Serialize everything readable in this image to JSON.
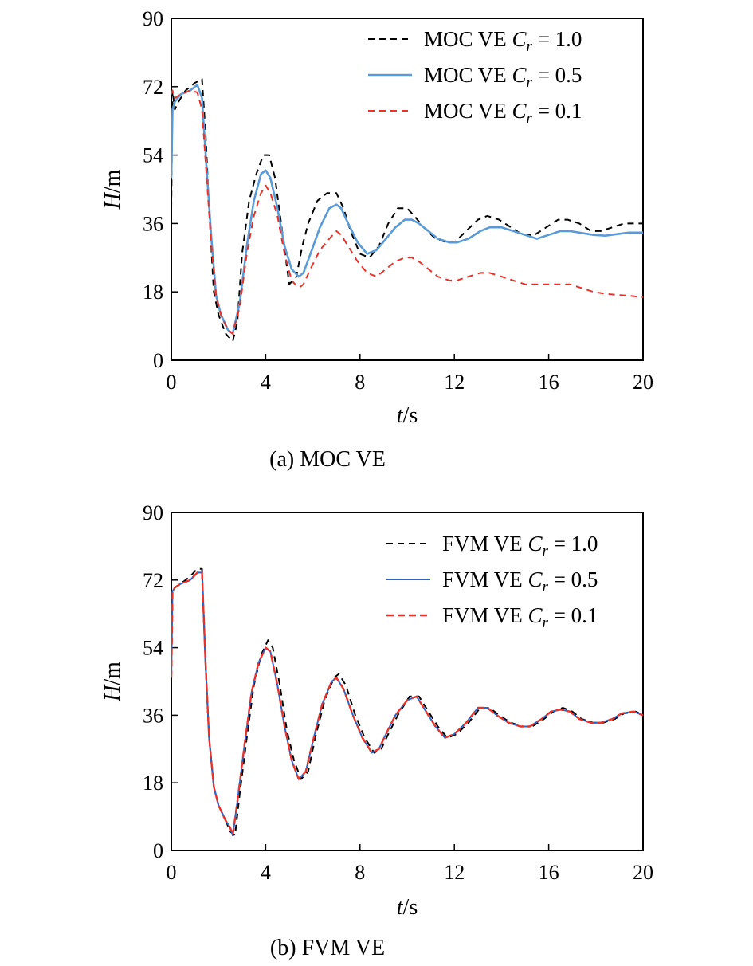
{
  "chart_data": [
    {
      "type": "line",
      "caption": "(a) MOC VE",
      "xlabel": {
        "var": "t",
        "unit": "/s"
      },
      "ylabel": {
        "var": "H",
        "unit": "/m"
      },
      "xlim": [
        0,
        20
      ],
      "ylim": [
        0,
        90
      ],
      "xticks": [
        0,
        4,
        8,
        12,
        16,
        20
      ],
      "yticks": [
        0,
        18,
        36,
        54,
        72,
        90
      ],
      "legend_position": "top-right",
      "series": [
        {
          "name": "MOC VE C_r = 1.0",
          "legend": {
            "prefix": "MOC VE ",
            "sym": "C",
            "sub": "r",
            "suffix": " = 1.0"
          },
          "color": "#000000",
          "dash": "8,6",
          "width": 2,
          "x": [
            0,
            0.05,
            0.15,
            0.3,
            0.6,
            1.0,
            1.3,
            1.45,
            1.6,
            1.8,
            2.0,
            2.3,
            2.6,
            2.8,
            3.0,
            3.3,
            3.6,
            3.9,
            4.15,
            4.4,
            4.7,
            5.0,
            5.3,
            5.55,
            5.8,
            6.2,
            6.6,
            7.0,
            7.3,
            7.6,
            8.0,
            8.4,
            8.8,
            9.2,
            9.6,
            10.0,
            10.3,
            10.7,
            11.2,
            11.7,
            12.0,
            12.5,
            13.0,
            13.4,
            13.9,
            14.4,
            14.9,
            15.4,
            15.9,
            16.4,
            16.8,
            17.3,
            17.8,
            18.2,
            18.7,
            19.2,
            19.6,
            20.0
          ],
          "y": [
            40,
            71,
            66,
            68,
            71,
            73,
            74,
            60,
            40,
            18,
            12,
            7,
            5,
            10,
            28,
            42,
            49,
            54,
            54,
            48,
            34,
            20,
            22,
            30,
            36,
            42,
            44,
            44,
            40,
            34,
            28,
            27,
            30,
            36,
            40,
            40,
            38,
            35,
            32,
            31,
            31,
            34,
            37,
            38,
            37,
            35,
            33,
            33,
            35,
            37,
            37,
            36,
            34,
            34,
            35,
            36,
            36,
            36
          ]
        },
        {
          "name": "MOC VE C_r = 0.5",
          "legend": {
            "prefix": "MOC VE ",
            "sym": "C",
            "sub": "r",
            "suffix": " = 0.5"
          },
          "color": "#5b9bd5",
          "dash": "",
          "width": 2.6,
          "x": [
            0,
            0.05,
            0.15,
            0.4,
            0.8,
            1.1,
            1.3,
            1.5,
            1.7,
            1.9,
            2.1,
            2.4,
            2.6,
            2.9,
            3.2,
            3.5,
            3.8,
            4.0,
            4.2,
            4.5,
            4.8,
            5.1,
            5.4,
            5.6,
            5.9,
            6.3,
            6.7,
            7.0,
            7.2,
            7.5,
            7.9,
            8.3,
            8.7,
            9.1,
            9.5,
            9.9,
            10.2,
            10.5,
            10.9,
            11.3,
            11.8,
            12.1,
            12.6,
            13.1,
            13.5,
            14.0,
            14.5,
            15.0,
            15.5,
            16.0,
            16.5,
            16.9,
            17.4,
            17.9,
            18.4,
            18.9,
            19.4,
            20.0
          ],
          "y": [
            48,
            66,
            68,
            70,
            71,
            72.5,
            69,
            50,
            32,
            17,
            12,
            8,
            7,
            15,
            30,
            42,
            49,
            50,
            48,
            40,
            30,
            24,
            22,
            23,
            28,
            35,
            40,
            41,
            40,
            36,
            31,
            28,
            29,
            32,
            35,
            37,
            37,
            36,
            34,
            32,
            31,
            31,
            32,
            34,
            35,
            35,
            34,
            33,
            32,
            33,
            34,
            34,
            33.5,
            33,
            32.8,
            33.2,
            33.6,
            33.6
          ]
        },
        {
          "name": "MOC VE C_r = 0.1",
          "legend": {
            "prefix": "MOC VE ",
            "sym": "C",
            "sub": "r",
            "suffix": " = 0.1"
          },
          "color": "#e8322c",
          "dash": "8,6",
          "width": 2,
          "x": [
            0,
            0.05,
            0.15,
            0.4,
            0.8,
            1.1,
            1.3,
            1.5,
            1.7,
            1.9,
            2.1,
            2.4,
            2.6,
            2.9,
            3.2,
            3.5,
            3.8,
            4.0,
            4.2,
            4.5,
            4.8,
            5.1,
            5.4,
            5.6,
            5.9,
            6.3,
            6.7,
            7.0,
            7.2,
            7.5,
            7.9,
            8.3,
            8.7,
            9.1,
            9.5,
            9.9,
            10.2,
            10.5,
            10.9,
            11.3,
            11.8,
            12.1,
            12.6,
            13.1,
            13.5,
            14.0,
            14.5,
            15.0,
            15.5,
            16.0,
            16.5,
            16.9,
            17.4,
            17.9,
            18.4,
            18.9,
            19.4,
            20.0
          ],
          "y": [
            70,
            71,
            69,
            70,
            71,
            70.5,
            66,
            48,
            30,
            17,
            12,
            8,
            7,
            14,
            28,
            38,
            44,
            46,
            44,
            38,
            28,
            21,
            19,
            20,
            24,
            29,
            32,
            34,
            33,
            30,
            26,
            23,
            22,
            24,
            26,
            27,
            27,
            26,
            24,
            22,
            21,
            21,
            22,
            23,
            23,
            22,
            21,
            20,
            20,
            20,
            20,
            20,
            19,
            18,
            17.5,
            17.2,
            17,
            16.6
          ]
        }
      ]
    },
    {
      "type": "line",
      "caption": "(b) FVM VE",
      "xlabel": {
        "var": "t",
        "unit": "/s"
      },
      "ylabel": {
        "var": "H",
        "unit": "/m"
      },
      "xlim": [
        0,
        20
      ],
      "ylim": [
        0,
        90
      ],
      "xticks": [
        0,
        4,
        8,
        12,
        16,
        20
      ],
      "yticks": [
        0,
        18,
        36,
        54,
        72,
        90
      ],
      "legend_position": "top-right",
      "series": [
        {
          "name": "FVM VE C_r = 1.0",
          "legend": {
            "prefix": "FVM VE ",
            "sym": "C",
            "sub": "r",
            "suffix": " = 1.0"
          },
          "color": "#000000",
          "dash": "8,6",
          "width": 2,
          "x": [
            0,
            0.05,
            0.15,
            0.4,
            0.8,
            1.1,
            1.3,
            1.45,
            1.6,
            1.8,
            2.0,
            2.3,
            2.5,
            2.7,
            2.9,
            3.2,
            3.5,
            3.8,
            4.1,
            4.3,
            4.6,
            4.9,
            5.2,
            5.5,
            5.8,
            6.1,
            6.5,
            6.9,
            7.1,
            7.4,
            7.8,
            8.2,
            8.6,
            8.9,
            9.2,
            9.6,
            10.1,
            10.5,
            10.9,
            11.3,
            11.7,
            12.1,
            12.6,
            13.1,
            13.5,
            13.9,
            14.4,
            14.9,
            15.3,
            15.8,
            16.2,
            16.6,
            17.0,
            17.4,
            17.9,
            18.3,
            18.8,
            19.2,
            19.7,
            20.0
          ],
          "y": [
            46,
            69,
            70,
            71,
            73,
            75,
            75,
            50,
            30,
            17,
            12,
            8,
            5,
            4,
            15,
            30,
            44,
            52,
            56,
            54,
            44,
            32,
            24,
            19,
            21,
            30,
            40,
            46,
            47,
            44,
            36,
            30,
            26,
            27,
            31,
            36,
            41,
            41,
            37,
            33,
            30,
            31,
            34,
            38,
            38,
            36,
            34,
            33,
            33,
            35,
            37,
            38,
            37,
            35,
            34,
            34,
            35,
            36.5,
            37,
            36
          ]
        },
        {
          "name": "FVM VE C_r = 0.5",
          "legend": {
            "prefix": "FVM VE ",
            "sym": "C",
            "sub": "r",
            "suffix": " = 0.5"
          },
          "color": "#2e63c8",
          "dash": "",
          "width": 2,
          "x": [
            0,
            0.05,
            0.15,
            0.4,
            0.8,
            1.1,
            1.3,
            1.45,
            1.6,
            1.8,
            2.0,
            2.3,
            2.5,
            2.6,
            2.8,
            3.1,
            3.4,
            3.7,
            4.0,
            4.2,
            4.5,
            4.8,
            5.1,
            5.4,
            5.7,
            6.0,
            6.4,
            6.8,
            7.0,
            7.3,
            7.7,
            8.1,
            8.5,
            8.8,
            9.1,
            9.5,
            10.0,
            10.4,
            10.8,
            11.2,
            11.6,
            12.0,
            12.5,
            13.0,
            13.4,
            13.8,
            14.3,
            14.8,
            15.2,
            15.7,
            16.1,
            16.5,
            16.9,
            17.3,
            17.8,
            18.2,
            18.7,
            19.1,
            19.6,
            20.0
          ],
          "y": [
            46,
            69,
            70,
            71,
            72,
            74,
            74,
            50,
            30,
            17,
            12,
            8,
            6,
            4,
            13,
            28,
            42,
            50,
            54,
            53,
            44,
            33,
            24,
            19,
            21,
            29,
            39,
            45,
            46,
            43,
            36,
            30,
            26,
            27,
            31,
            36,
            40,
            41,
            37,
            33,
            30,
            31,
            34,
            38,
            38,
            36,
            34,
            33,
            33,
            35,
            37,
            37.5,
            37,
            35,
            34,
            34,
            35,
            36.5,
            37,
            36
          ]
        },
        {
          "name": "FVM VE C_r = 0.1",
          "legend": {
            "prefix": "FVM VE ",
            "sym": "C",
            "sub": "r",
            "suffix": " = 0.1"
          },
          "color": "#e8322c",
          "dash": "9,5",
          "width": 2.4,
          "x": [
            0,
            0.05,
            0.15,
            0.4,
            0.8,
            1.1,
            1.3,
            1.45,
            1.6,
            1.8,
            2.0,
            2.3,
            2.5,
            2.6,
            2.8,
            3.1,
            3.4,
            3.7,
            4.0,
            4.2,
            4.5,
            4.8,
            5.1,
            5.4,
            5.7,
            6.0,
            6.4,
            6.8,
            7.0,
            7.3,
            7.7,
            8.1,
            8.5,
            8.8,
            9.1,
            9.5,
            10.0,
            10.4,
            10.8,
            11.2,
            11.6,
            12.0,
            12.5,
            13.0,
            13.4,
            13.8,
            14.3,
            14.8,
            15.2,
            15.7,
            16.1,
            16.5,
            16.9,
            17.3,
            17.8,
            18.2,
            18.7,
            19.1,
            19.6,
            20.0
          ],
          "y": [
            46,
            69,
            70,
            71,
            72,
            74,
            74,
            50,
            30,
            17,
            12,
            8,
            6,
            4,
            13,
            28,
            42,
            50,
            54,
            53,
            44,
            33,
            24,
            19,
            21,
            29,
            39,
            45,
            46,
            43,
            36,
            30,
            26,
            27,
            31,
            36,
            40,
            41,
            37,
            33,
            30,
            31,
            34,
            38,
            38,
            36,
            34,
            33,
            33,
            35,
            37,
            37.5,
            37,
            35,
            34,
            34,
            35,
            36.5,
            37,
            36
          ]
        }
      ]
    }
  ]
}
